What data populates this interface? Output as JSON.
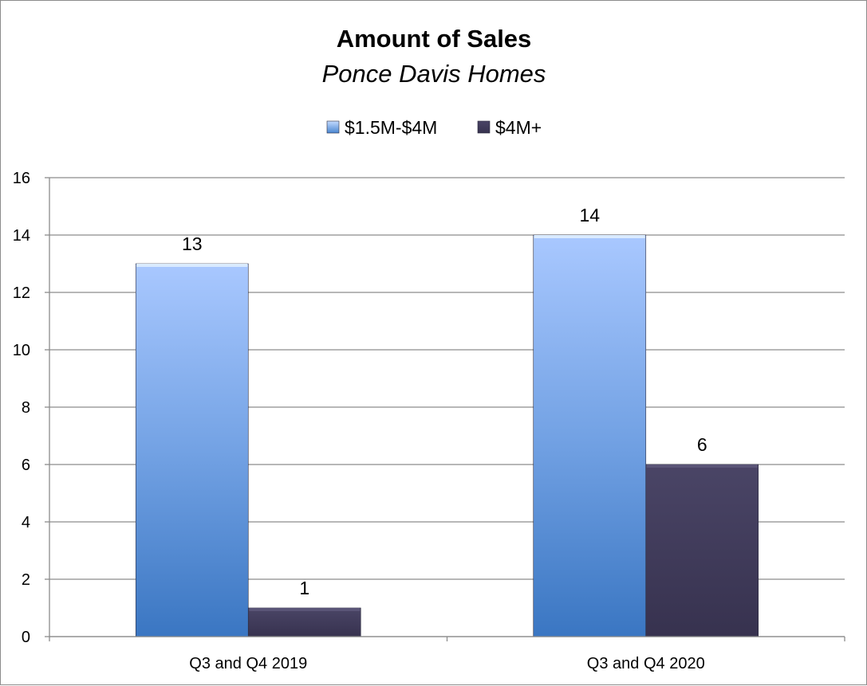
{
  "chart_data": {
    "type": "bar",
    "title": "Amount of Sales",
    "subtitle": "Ponce Davis Homes",
    "categories": [
      "Q3 and Q4 2019",
      "Q3 and Q4 2020"
    ],
    "series": [
      {
        "name": "$1.5M-$4M",
        "values": [
          13,
          14
        ],
        "color": "#6f9fe3"
      },
      {
        "name": "$4M+",
        "values": [
          1,
          6
        ],
        "color": "#3f3a59"
      }
    ],
    "ylim": [
      0,
      16
    ],
    "yticks": [
      0,
      2,
      4,
      6,
      8,
      10,
      12,
      14,
      16
    ],
    "grid": true,
    "legend_position": "top"
  }
}
